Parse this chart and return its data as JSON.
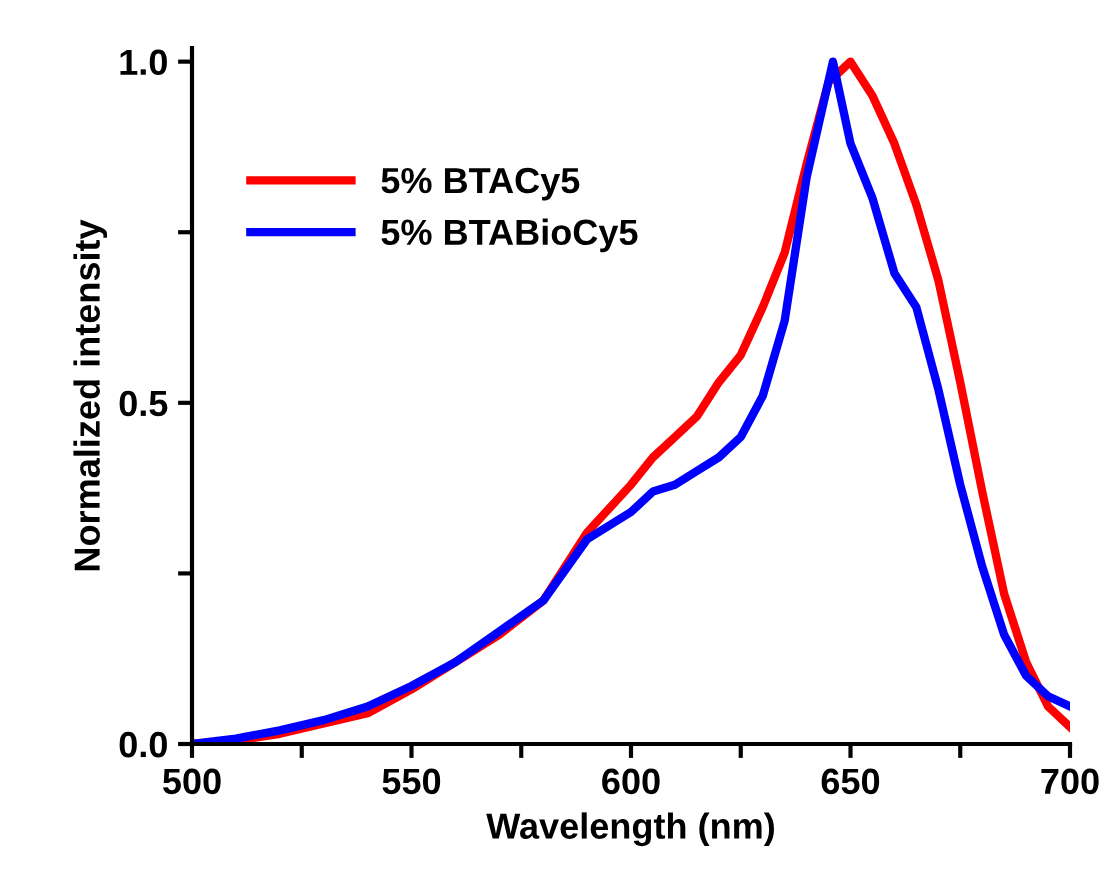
{
  "chart_data": {
    "type": "line",
    "xlabel": "Wavelength (nm)",
    "ylabel": "Normalized intensity",
    "xlim": [
      500,
      700
    ],
    "ylim": [
      0,
      1.02
    ],
    "xticks": [
      500,
      {
        "value": 525,
        "label": null
      },
      550,
      {
        "value": 575,
        "label": null
      },
      600,
      {
        "value": 625,
        "label": null
      },
      650,
      {
        "value": 675,
        "label": null
      },
      700
    ],
    "yticks": [
      {
        "value": 0,
        "label": "0.0"
      },
      {
        "value": 0.25,
        "label": null
      },
      0.5,
      {
        "value": 0.75,
        "label": null
      },
      {
        "value": 1.0,
        "label": "1.0"
      }
    ],
    "legend": "top left",
    "grid": false,
    "marker": "none",
    "line_style": "solid",
    "series": [
      {
        "name": "5% BTACy5",
        "color": "#ff0000",
        "x": [
          500,
          510,
          520,
          530,
          540,
          550,
          560,
          570,
          580,
          590,
          600,
          605,
          610,
          615,
          620,
          625,
          630,
          635,
          640,
          645,
          650,
          655,
          660,
          665,
          670,
          675,
          680,
          685,
          690,
          695,
          700
        ],
        "values": [
          0,
          0.005,
          0.015,
          0.03,
          0.045,
          0.08,
          0.12,
          0.16,
          0.21,
          0.31,
          0.38,
          0.42,
          0.45,
          0.48,
          0.53,
          0.57,
          0.64,
          0.72,
          0.85,
          0.97,
          1.0,
          0.95,
          0.88,
          0.79,
          0.68,
          0.53,
          0.37,
          0.22,
          0.12,
          0.055,
          0.025
        ]
      },
      {
        "name": "5% BTABioCy5",
        "color": "#0000ff",
        "x": [
          500,
          510,
          520,
          530,
          540,
          550,
          560,
          570,
          580,
          590,
          600,
          605,
          610,
          615,
          620,
          625,
          630,
          635,
          640,
          646,
          650,
          655,
          660,
          665,
          670,
          675,
          680,
          685,
          690,
          695,
          700
        ],
        "values": [
          0,
          0.008,
          0.02,
          0.035,
          0.055,
          0.085,
          0.12,
          0.165,
          0.21,
          0.3,
          0.34,
          0.37,
          0.38,
          0.4,
          0.42,
          0.45,
          0.51,
          0.62,
          0.83,
          1.0,
          0.88,
          0.8,
          0.69,
          0.64,
          0.52,
          0.38,
          0.26,
          0.16,
          0.1,
          0.07,
          0.055
        ]
      }
    ]
  }
}
